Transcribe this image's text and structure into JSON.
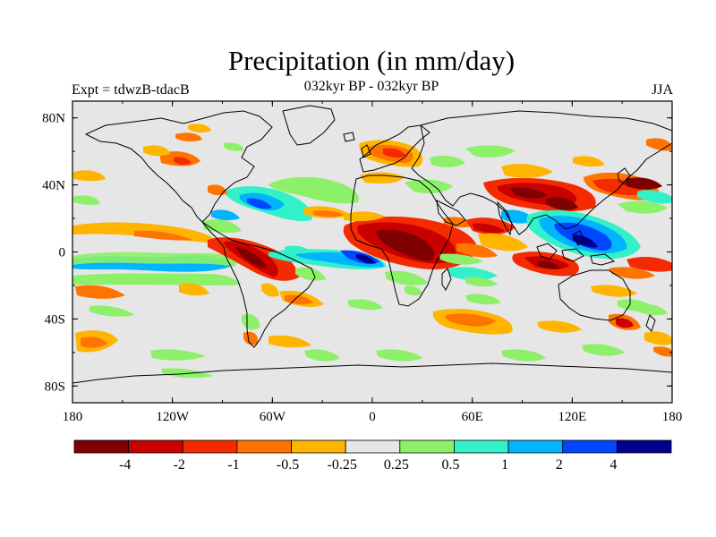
{
  "title": "Precipitation (in mm/day)",
  "left_label": "Expt = tdwzB-tdacB",
  "center_label": "032kyr BP - 032kyr BP",
  "right_label": "JJA",
  "lat_ticks": [
    "80N",
    "40N",
    "0",
    "40S",
    "80S"
  ],
  "lon_ticks": [
    "180",
    "120W",
    "60W",
    "0",
    "60E",
    "120E",
    "180"
  ],
  "colorbar": {
    "colors": [
      "#7f0000",
      "#c80000",
      "#f42a00",
      "#ff7300",
      "#ffb400",
      "#e6e6e6",
      "#8cf069",
      "#32f0c8",
      "#00b4ff",
      "#0046ff",
      "#00008c"
    ],
    "labels": [
      "-4",
      "-2",
      "-1",
      "-0.5",
      "-0.25",
      "0.25",
      "0.5",
      "1",
      "2",
      "4"
    ]
  }
}
